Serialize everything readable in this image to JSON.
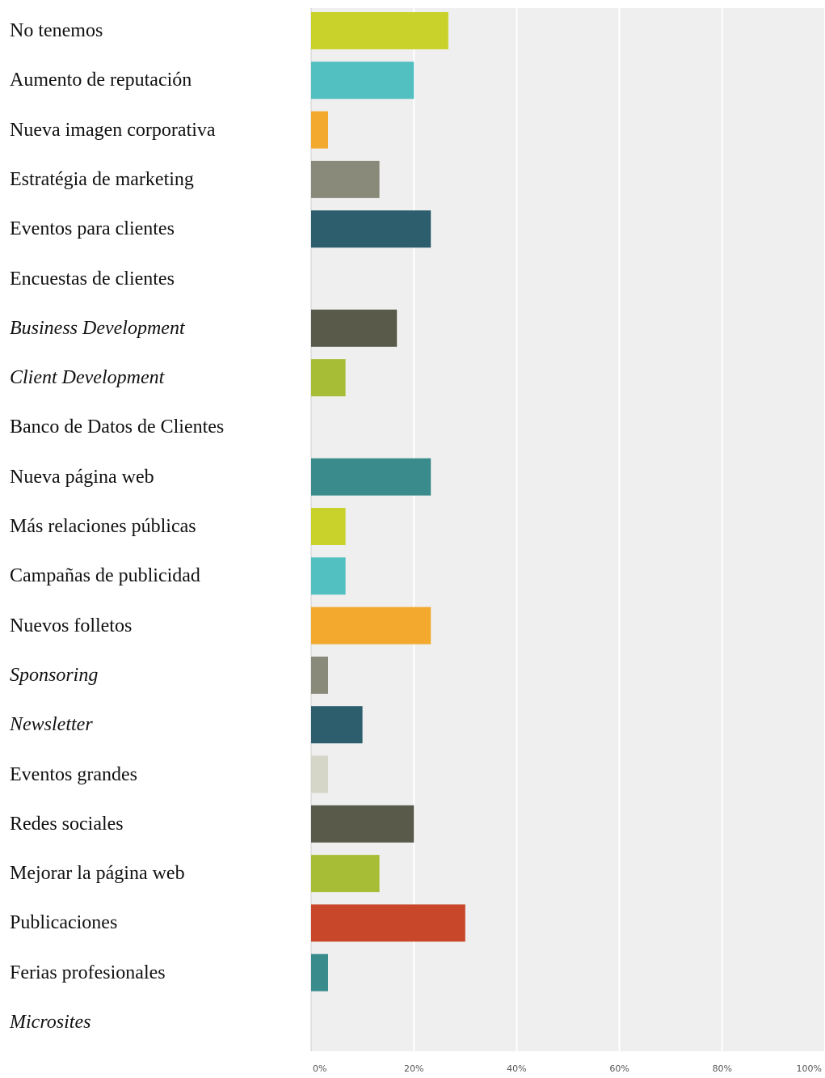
{
  "chart_data": {
    "type": "bar",
    "orientation": "horizontal",
    "categories": [
      "No tenemos",
      "Aumento de reputación",
      "Nueva imagen corporativa",
      "Estratégia de marketing",
      "Eventos para clientes",
      "Encuestas de clientes",
      "Business Development",
      "Client Development",
      "Banco de Datos de Clientes",
      "Nueva página web",
      "Más relaciones públicas",
      "Campañas de publicidad",
      "Nuevos folletos",
      "Sponsoring",
      "Newsletter",
      "Eventos grandes",
      "Redes sociales",
      "Mejorar la página web",
      "Publicaciones",
      "Ferias profesionales",
      "Microsites"
    ],
    "italic": [
      false,
      false,
      false,
      false,
      false,
      false,
      true,
      true,
      false,
      false,
      false,
      false,
      false,
      true,
      true,
      false,
      false,
      false,
      false,
      false,
      true
    ],
    "values": [
      26.7,
      20.0,
      3.3,
      13.3,
      23.3,
      0,
      16.7,
      6.7,
      0,
      23.3,
      6.7,
      6.7,
      23.3,
      3.3,
      10.0,
      3.3,
      20.0,
      13.3,
      30.0,
      3.3,
      0
    ],
    "colors": [
      "#c9d22a",
      "#52bfc0",
      "#f2a92d",
      "#8a8a7a",
      "#2c5e6e",
      "#cccccc",
      "#5a5a4a",
      "#a8bd36",
      "#cccccc",
      "#3a8c8c",
      "#c9d22a",
      "#52bfc0",
      "#f2a92d",
      "#8a8a7a",
      "#2c5e6e",
      "#d6d6c8",
      "#5a5a4a",
      "#a8bd36",
      "#c8472b",
      "#3a8c8c",
      "#cccccc"
    ],
    "x_ticks": [
      "0%",
      "20%",
      "40%",
      "60%",
      "80%",
      "100%"
    ],
    "xlim": [
      0,
      100
    ],
    "grid": true,
    "plot_background": "#efefef"
  }
}
